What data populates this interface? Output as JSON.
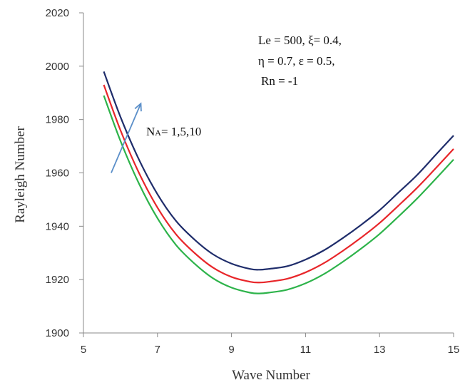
{
  "chart_data": {
    "type": "line",
    "title": "",
    "xlabel": "Wave Number",
    "ylabel": "Rayleigh Number",
    "xlim": [
      5,
      15
    ],
    "ylim": [
      1900,
      2020
    ],
    "xticks": [
      5,
      7,
      9,
      11,
      13,
      15
    ],
    "yticks": [
      1900,
      1920,
      1940,
      1960,
      1980,
      2000,
      2020
    ],
    "grid": false,
    "series": [
      {
        "color": "#1f2d6b",
        "x": [
          5.55,
          6.0,
          6.5,
          7.0,
          7.5,
          8.0,
          8.5,
          9.0,
          9.5,
          9.75,
          10.0,
          10.5,
          11.0,
          11.5,
          12.0,
          12.5,
          13.0,
          13.5,
          14.0,
          14.5,
          15.0
        ],
        "y": [
          1998,
          1981,
          1965,
          1952,
          1942,
          1935,
          1929.5,
          1926,
          1924,
          1923.7,
          1924,
          1925,
          1927.5,
          1931,
          1935.5,
          1940.5,
          1946,
          1952.5,
          1959,
          1966.5,
          1974
        ]
      },
      {
        "color": "#e8262a",
        "x": [
          5.55,
          6.0,
          6.5,
          7.0,
          7.5,
          8.0,
          8.5,
          9.0,
          9.5,
          9.75,
          10.0,
          10.5,
          11.0,
          11.5,
          12.0,
          12.5,
          13.0,
          13.5,
          14.0,
          14.5,
          15.0
        ],
        "y": [
          1993,
          1976,
          1960,
          1947,
          1937,
          1930,
          1924.5,
          1921,
          1919.2,
          1918.9,
          1919.2,
          1920.3,
          1922.7,
          1926.2,
          1930.7,
          1935.7,
          1941.2,
          1947.6,
          1954.2,
          1961.5,
          1969
        ]
      },
      {
        "color": "#2db34a",
        "x": [
          5.55,
          6.0,
          6.5,
          7.0,
          7.5,
          8.0,
          8.5,
          9.0,
          9.5,
          9.75,
          10.0,
          10.5,
          11.0,
          11.5,
          12.0,
          12.5,
          13.0,
          13.5,
          14.0,
          14.5,
          15.0
        ],
        "y": [
          1989,
          1972,
          1956,
          1943,
          1933,
          1926,
          1920.5,
          1917,
          1915.1,
          1914.8,
          1915.1,
          1916.2,
          1918.6,
          1922.1,
          1926.6,
          1931.6,
          1937.1,
          1943.5,
          1950.2,
          1957.5,
          1965
        ]
      }
    ],
    "annotations": {
      "params": [
        "Le = 500, ξ= 0.4,",
        "η = 0.7, ε = 0.5,",
        "Rn = -1"
      ],
      "na_label_main": "N",
      "na_label_sub": "A",
      "na_label_rest": "= 1,5,10",
      "arrow_color": "#5b8fc9",
      "arrow_from": [
        5.75,
        1960
      ],
      "arrow_to": [
        6.55,
        1986
      ]
    }
  }
}
